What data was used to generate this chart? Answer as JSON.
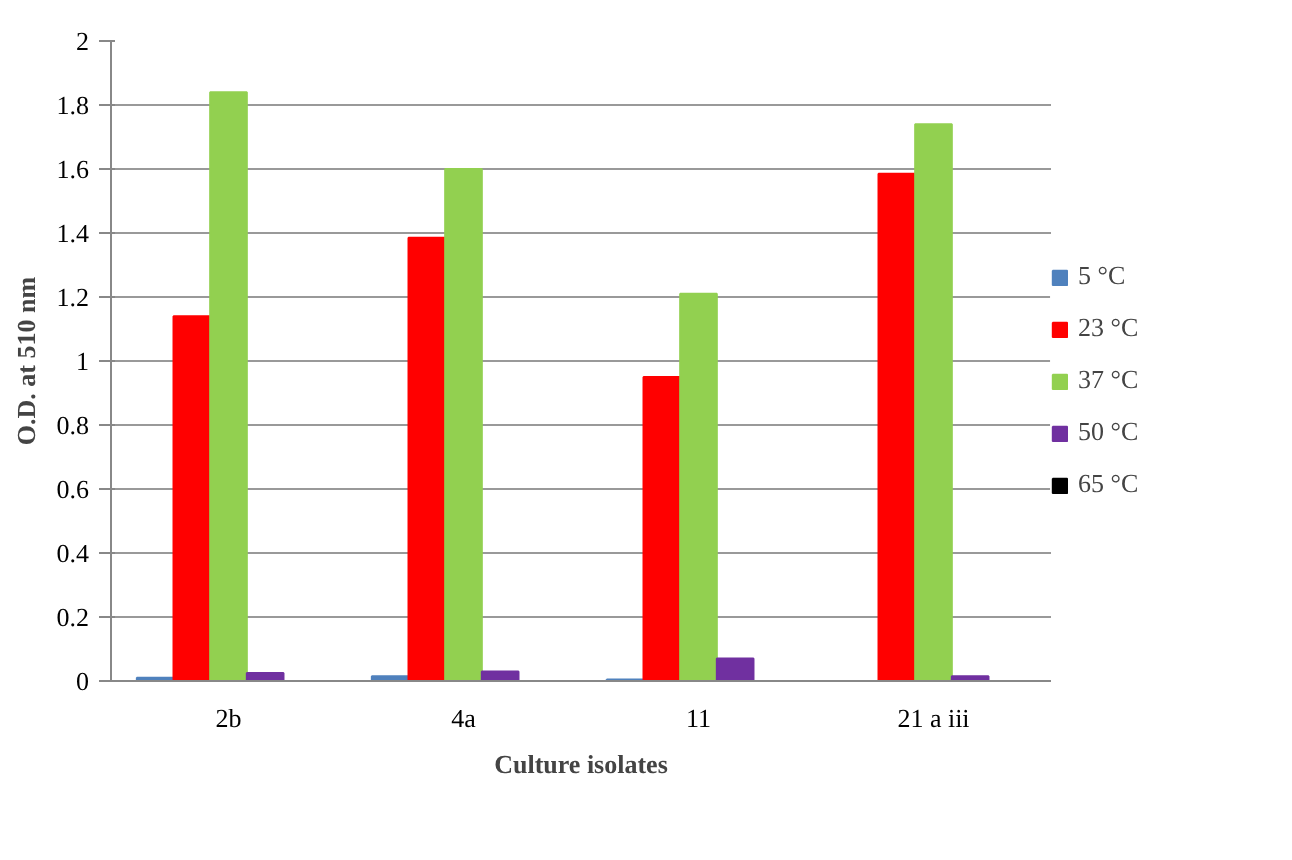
{
  "chart_data": {
    "type": "bar",
    "xlabel": "Culture isolates",
    "ylabel": "O.D. at 510 nm",
    "categories": [
      "2b",
      "4a",
      "11",
      "21 a iii"
    ],
    "series": [
      {
        "name": "5 °C",
        "color": "#4f81bd",
        "values": [
          0.01,
          0.015,
          0.005,
          0
        ]
      },
      {
        "name": "23 °C",
        "color": "#ff0000",
        "values": [
          1.14,
          1.385,
          0.95,
          1.585
        ]
      },
      {
        "name": "37 °C",
        "color": "#92d050",
        "values": [
          1.84,
          1.6,
          1.21,
          1.74
        ]
      },
      {
        "name": "50 °C",
        "color": "#7030a0",
        "values": [
          0.025,
          0.03,
          0.07,
          0.015
        ]
      },
      {
        "name": "65 °C",
        "color": "#000000",
        "values": [
          0,
          0,
          0,
          0
        ]
      }
    ],
    "ylim": [
      0,
      2
    ],
    "yticks": [
      0,
      {
        "value": 0.2,
        "label": "0.2"
      },
      {
        "value": 0.4,
        "label": "0.4"
      },
      {
        "value": 0.6,
        "label": "0.6"
      },
      {
        "value": 0.8,
        "label": "0.8"
      },
      1,
      {
        "value": 1.2,
        "label": "1.2"
      },
      {
        "value": 1.4,
        "label": "1.4"
      },
      {
        "value": 1.6,
        "label": "1.6"
      },
      {
        "value": 1.8,
        "label": "1.8"
      },
      2
    ],
    "grid": "y",
    "legend": "right"
  }
}
